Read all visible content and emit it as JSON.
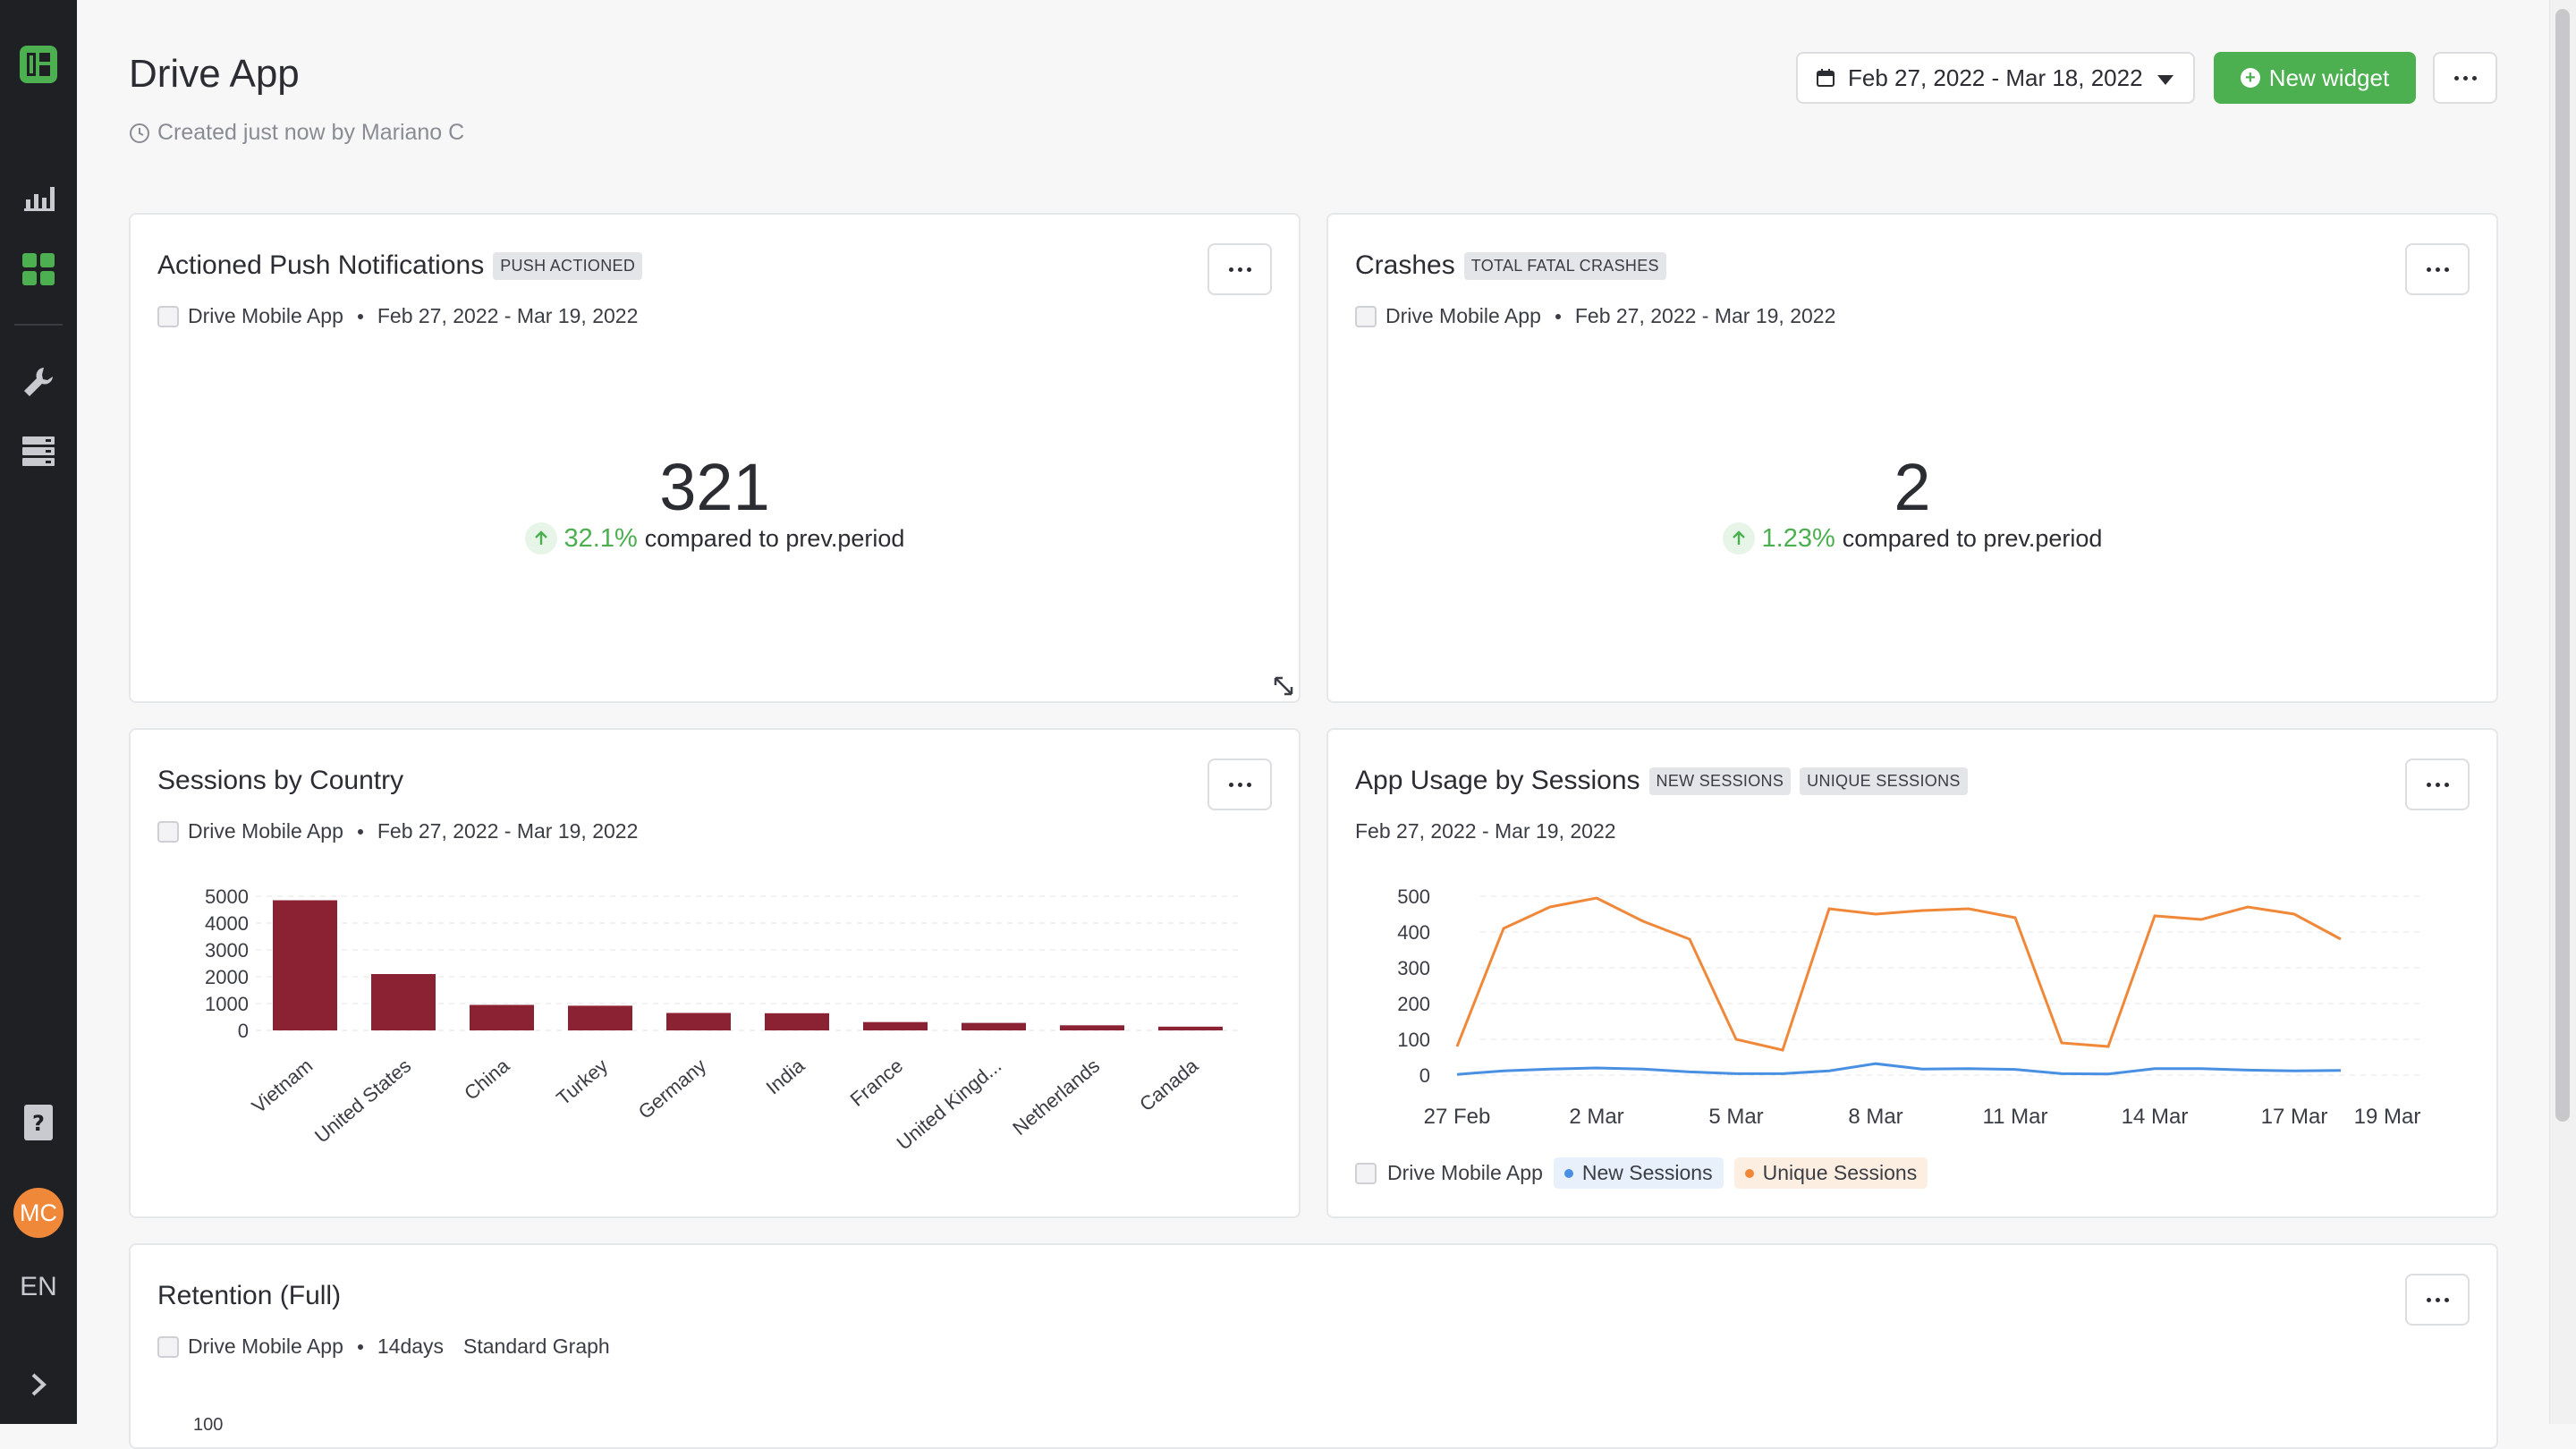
{
  "sidebar": {
    "logo": "logo-icon",
    "items": [
      {
        "name": "analytics-icon"
      },
      {
        "name": "dashboards-icon"
      },
      {
        "name": "tools-icon"
      },
      {
        "name": "data-icon"
      },
      {
        "name": "help-icon"
      }
    ],
    "avatar_initials": "MC",
    "language": "EN",
    "accent": "#4caf50"
  },
  "header": {
    "title": "Drive App",
    "subtitle": "Created just now by Mariano C",
    "date_range": "Feb 27, 2022 - Mar 18, 2022",
    "new_widget_label": "New widget"
  },
  "widgets": {
    "push": {
      "title": "Actioned Push Notifications",
      "tag": "PUSH ACTIONED",
      "app": "Drive Mobile App",
      "range": "Feb 27, 2022 - Mar 19, 2022",
      "value": "321",
      "delta": "32.1%",
      "delta_text": "compared to prev.period"
    },
    "crashes": {
      "title": "Crashes",
      "tag": "TOTAL FATAL CRASHES",
      "app": "Drive Mobile App",
      "range": "Feb 27, 2022 - Mar 19, 2022",
      "value": "2",
      "delta": "1.23%",
      "delta_text": "compared to prev.period"
    },
    "sessions_country": {
      "title": "Sessions by Country",
      "app": "Drive Mobile App",
      "range": "Feb 27, 2022 - Mar 19, 2022"
    },
    "app_usage": {
      "title": "App Usage by Sessions",
      "tags": [
        "NEW SESSIONS",
        "UNIQUE SESSIONS"
      ],
      "range": "Feb 27, 2022 - Mar 19, 2022",
      "legend_app": "Drive Mobile App",
      "legend_new": "New Sessions",
      "legend_unique": "Unique Sessions"
    },
    "retention": {
      "title": "Retention (Full)",
      "app": "Drive Mobile App",
      "period": "14days",
      "graph_type": "Standard Graph",
      "partial_tick": "100"
    }
  },
  "chart_data": [
    {
      "type": "bar",
      "categories": [
        "Vietnam",
        "United States",
        "China",
        "Turkey",
        "Germany",
        "India",
        "France",
        "United Kingd...",
        "Netherlands",
        "Canada"
      ],
      "values": [
        4850,
        2100,
        950,
        920,
        650,
        640,
        310,
        280,
        190,
        140
      ],
      "yticks": [
        "0",
        "1000",
        "2000",
        "3000",
        "4000",
        "5000"
      ],
      "ylim": [
        0,
        5000
      ],
      "color": "#8b2233",
      "grid": true
    },
    {
      "type": "line",
      "x": [
        "27 Feb",
        "28 Feb",
        "1 Mar",
        "2 Mar",
        "3 Mar",
        "4 Mar",
        "5 Mar",
        "6 Mar",
        "7 Mar",
        "8 Mar",
        "9 Mar",
        "10 Mar",
        "11 Mar",
        "12 Mar",
        "13 Mar",
        "14 Mar",
        "15 Mar",
        "16 Mar",
        "17 Mar",
        "18 Mar"
      ],
      "xticks": [
        "27 Feb",
        "2 Mar",
        "5 Mar",
        "8 Mar",
        "11 Mar",
        "14 Mar",
        "17 Mar",
        "19 Mar"
      ],
      "yticks": [
        "0",
        "100",
        "200",
        "300",
        "400",
        "500"
      ],
      "ylim": [
        0,
        500
      ],
      "series": [
        {
          "name": "New Sessions",
          "color": "#4a90e2",
          "values": [
            2,
            12,
            17,
            20,
            17,
            9,
            4,
            4,
            12,
            32,
            17,
            18,
            16,
            4,
            3,
            18,
            18,
            14,
            12,
            13
          ]
        },
        {
          "name": "Unique Sessions",
          "color": "#f0883a",
          "values": [
            80,
            410,
            470,
            495,
            430,
            380,
            100,
            70,
            465,
            450,
            460,
            465,
            440,
            90,
            80,
            445,
            435,
            470,
            450,
            380
          ]
        }
      ],
      "grid": true,
      "legend": "bottom-left"
    }
  ]
}
